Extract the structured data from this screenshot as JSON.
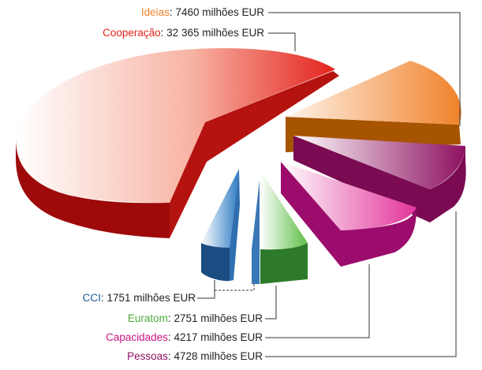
{
  "chart_data": {
    "type": "pie",
    "title": "",
    "unit": "milhões EUR",
    "slices": [
      {
        "name": "Ideias",
        "value": 7460,
        "text": "7460 milhões EUR",
        "color": "#f0822a"
      },
      {
        "name": "Cooperação",
        "value": 32365,
        "text": "32 365 milhões EUR",
        "color": "#e3231d"
      },
      {
        "name": "CCI",
        "value": 1751,
        "text": "1751 milhões EUR",
        "color": "#1f5a96"
      },
      {
        "name": "Euratom",
        "value": 2751,
        "text": "2751 milhões EUR",
        "color": "#4cad3a"
      },
      {
        "name": "Capacidades",
        "value": 4217,
        "text": "4217 milhões EUR",
        "color": "#c8147f"
      },
      {
        "name": "Pessoas",
        "value": 4728,
        "text": "4728 milhões EUR",
        "color": "#8d1060"
      }
    ]
  }
}
